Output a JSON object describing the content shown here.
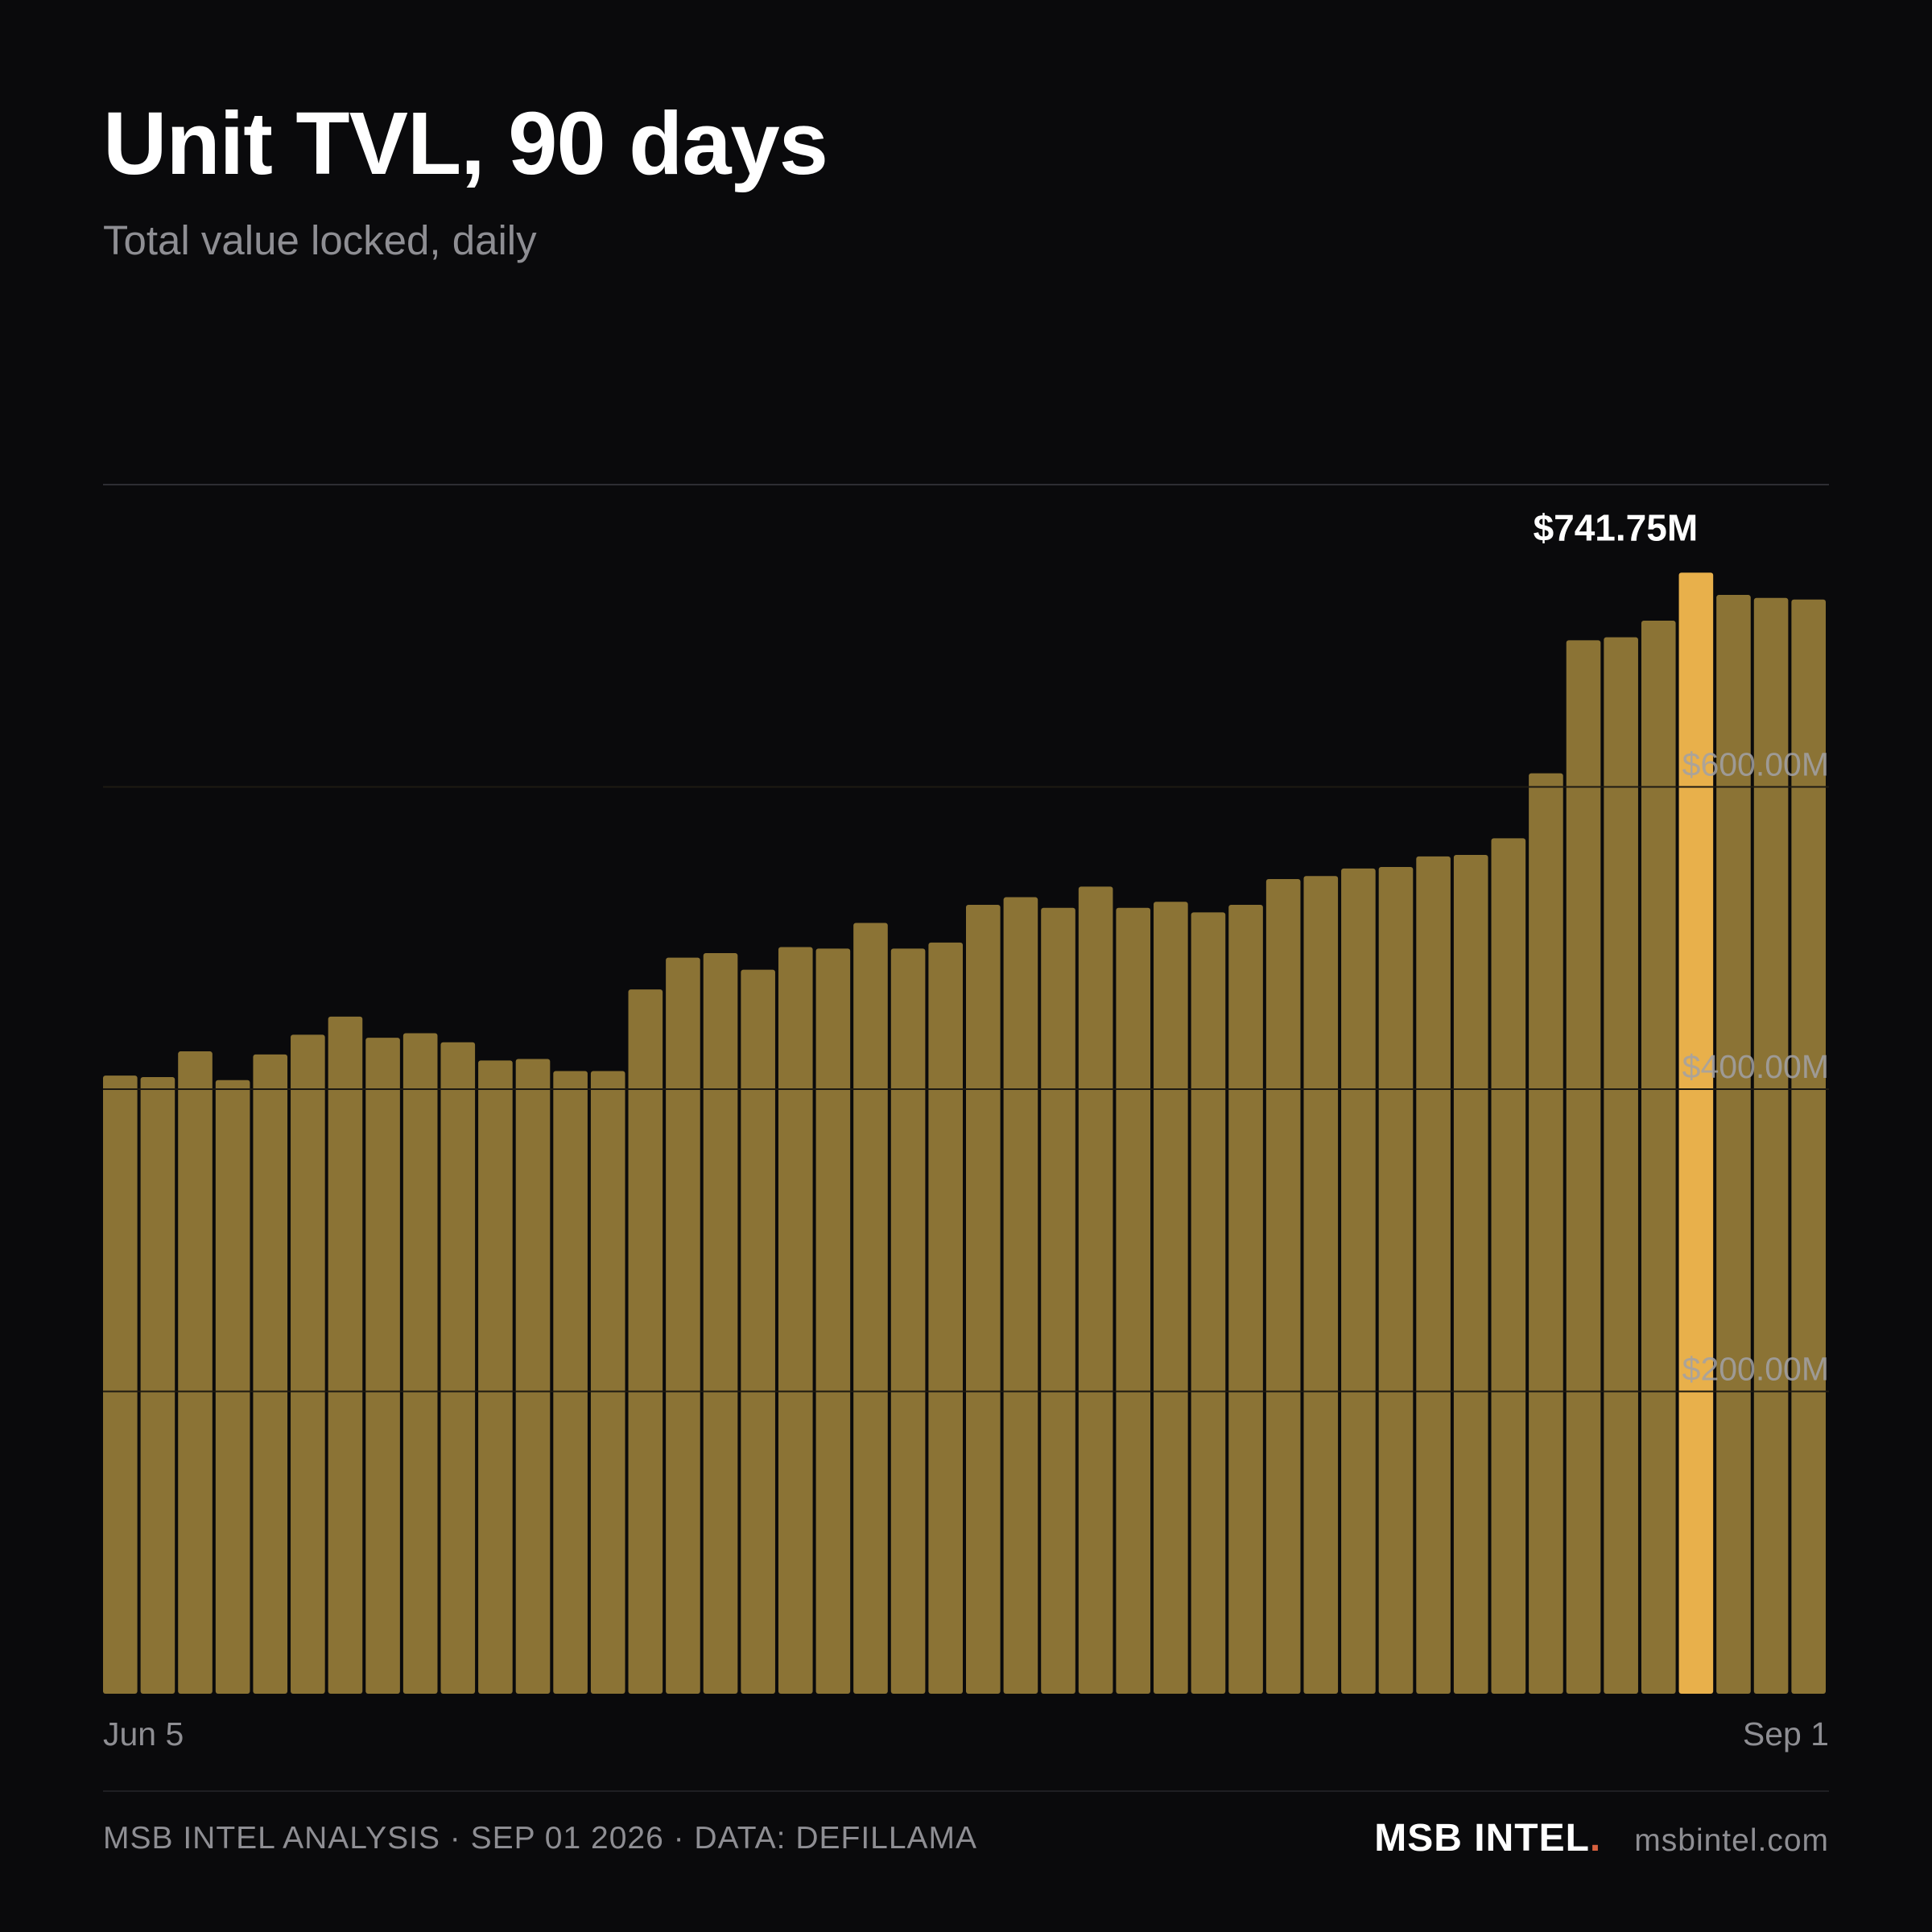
{
  "header": {
    "title": "Unit TVL, 90 days",
    "subtitle": "Total value locked, daily"
  },
  "colors": {
    "background": "#0a0a0c",
    "bar": "#8b7335",
    "bar_highlight": "#e8b04b",
    "gridline": "#2e2e33",
    "axis_text": "#8e8e93",
    "brand_accent": "#d9613f"
  },
  "chart_data": {
    "type": "bar",
    "ylim": [
      0,
      800
    ],
    "y_unit": "$M",
    "grid": true,
    "yticks": [
      {
        "value": 200,
        "label": "$200.00M"
      },
      {
        "value": 400,
        "label": "$400.00M"
      },
      {
        "value": 600,
        "label": "$600.00M"
      }
    ],
    "x_start_label": "Jun 5",
    "x_end_label": "Sep 1",
    "values": [
      409,
      408,
      425,
      406,
      423,
      436,
      448,
      434,
      437,
      431,
      419,
      420,
      412,
      412,
      466,
      487,
      490,
      479,
      494,
      493,
      510,
      493,
      497,
      522,
      527,
      520,
      534,
      520,
      524,
      517,
      522,
      539,
      541,
      546,
      547,
      554,
      555,
      566,
      609,
      697,
      699,
      710,
      741.75,
      727,
      725,
      724
    ],
    "highlight_index": 42,
    "highlight_label": "$741.75M"
  },
  "footer": {
    "source_line": "MSB INTEL ANALYSIS · SEP 01 2026 · DATA: DEFILLAMA",
    "brand": "MSB INTEL",
    "brand_dot": ".",
    "url": "msbintel.com"
  }
}
